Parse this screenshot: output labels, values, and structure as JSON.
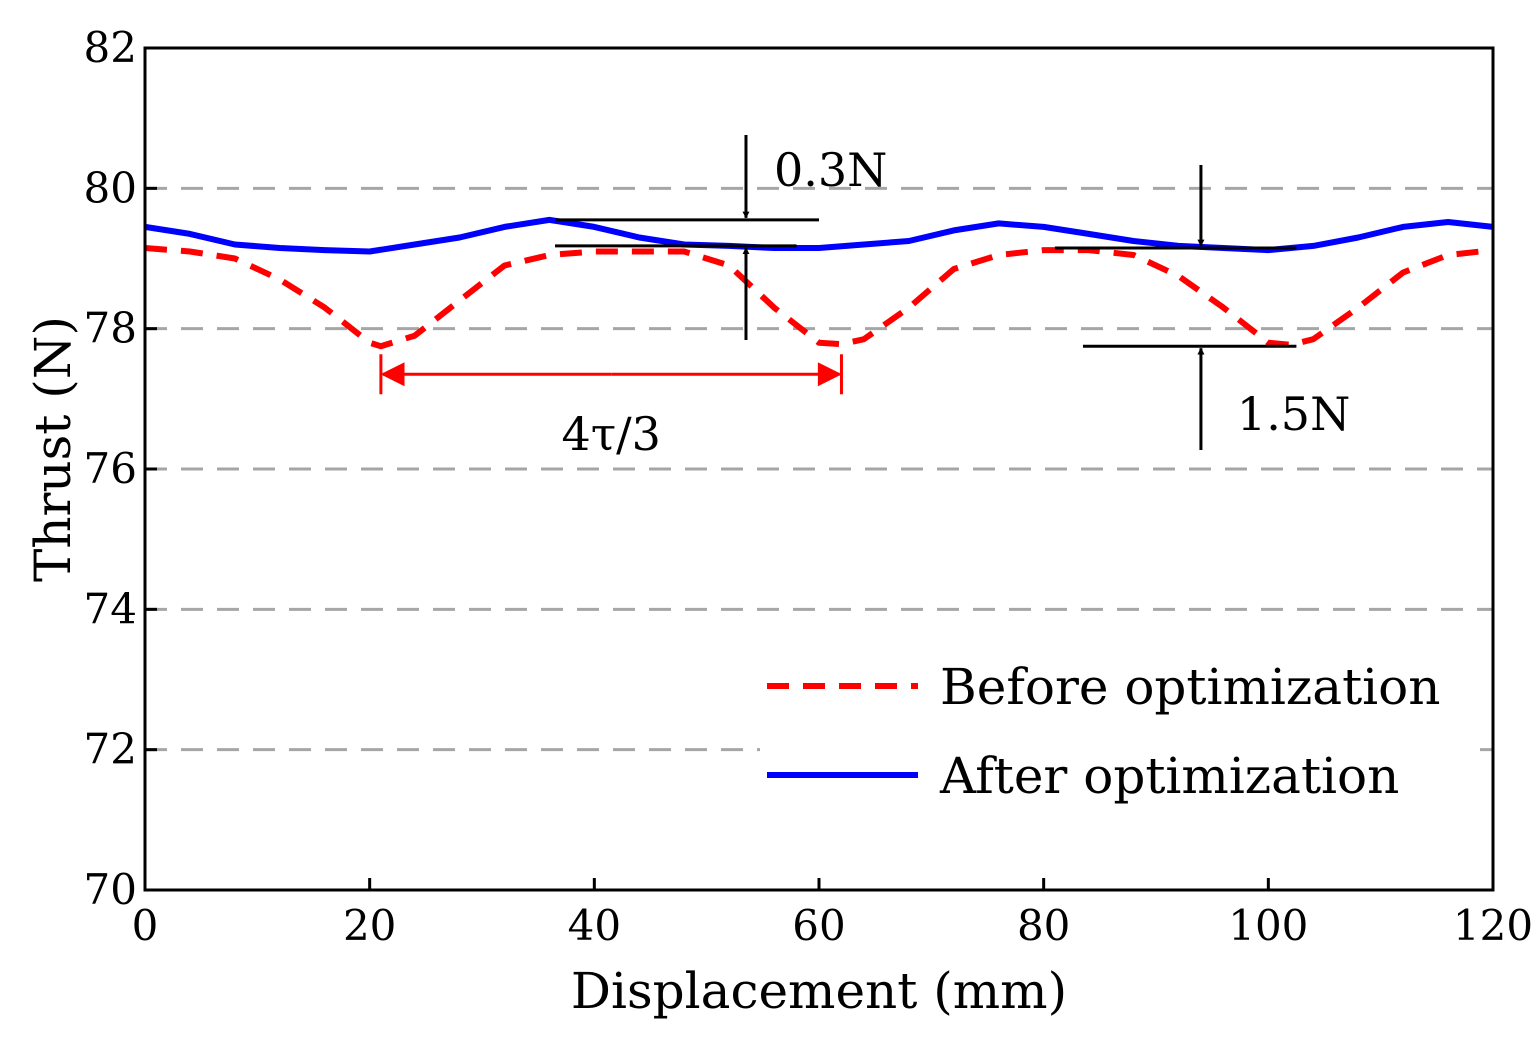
{
  "chart_data": {
    "type": "line",
    "title": "",
    "xlabel": "Displacement (mm)",
    "ylabel": "Thrust (N)",
    "xlim": [
      0,
      120
    ],
    "ylim": [
      70,
      82
    ],
    "xticks": [
      0,
      20,
      40,
      60,
      80,
      100,
      120
    ],
    "yticks": [
      70,
      72,
      74,
      76,
      78,
      80,
      82
    ],
    "xtick_labels": [
      "0",
      "20",
      "40",
      "60",
      "80",
      "100",
      "120"
    ],
    "ytick_labels": [
      "70",
      "72",
      "74",
      "76",
      "78",
      "80",
      "82"
    ],
    "grid": "horizontal dashed",
    "legend_position": "bottom-right",
    "series": [
      {
        "name": "Before optimization",
        "color": "#ff0000",
        "style": "dashed",
        "x": [
          0,
          4,
          8,
          12,
          16,
          20,
          21,
          24,
          28,
          32,
          36,
          40,
          44,
          48,
          52,
          56,
          60,
          62,
          64,
          68,
          72,
          76,
          80,
          84,
          88,
          92,
          96,
          100,
          102,
          104,
          108,
          112,
          116,
          120
        ],
        "y": [
          79.15,
          79.1,
          79.0,
          78.7,
          78.3,
          77.8,
          77.75,
          77.9,
          78.4,
          78.9,
          79.05,
          79.1,
          79.1,
          79.1,
          78.9,
          78.3,
          77.8,
          77.78,
          77.85,
          78.3,
          78.85,
          79.05,
          79.12,
          79.12,
          79.05,
          78.75,
          78.3,
          77.8,
          77.77,
          77.85,
          78.3,
          78.8,
          79.05,
          79.12
        ]
      },
      {
        "name": "After optimization",
        "color": "#0000ff",
        "style": "solid",
        "x": [
          0,
          4,
          8,
          12,
          16,
          20,
          24,
          28,
          32,
          36,
          40,
          44,
          48,
          52,
          56,
          60,
          64,
          68,
          72,
          76,
          80,
          84,
          88,
          92,
          96,
          100,
          104,
          108,
          112,
          116,
          120
        ],
        "y": [
          79.45,
          79.35,
          79.2,
          79.15,
          79.12,
          79.1,
          79.2,
          79.3,
          79.45,
          79.55,
          79.45,
          79.3,
          79.2,
          79.18,
          79.15,
          79.15,
          79.2,
          79.25,
          79.4,
          79.5,
          79.45,
          79.35,
          79.25,
          79.18,
          79.15,
          79.12,
          79.18,
          79.3,
          79.45,
          79.52,
          79.45
        ]
      }
    ],
    "annotations": [
      {
        "label": "0.3N",
        "type": "amplitude",
        "x": 53.5,
        "y_top": 79.55,
        "y_bottom": 79.18
      },
      {
        "label": "1.5N",
        "type": "amplitude",
        "x": 94,
        "y_top": 79.15,
        "y_bottom": 77.75
      },
      {
        "label": "4τ/3",
        "type": "period",
        "x_start": 21,
        "x_end": 62,
        "y": 77.35
      }
    ]
  }
}
